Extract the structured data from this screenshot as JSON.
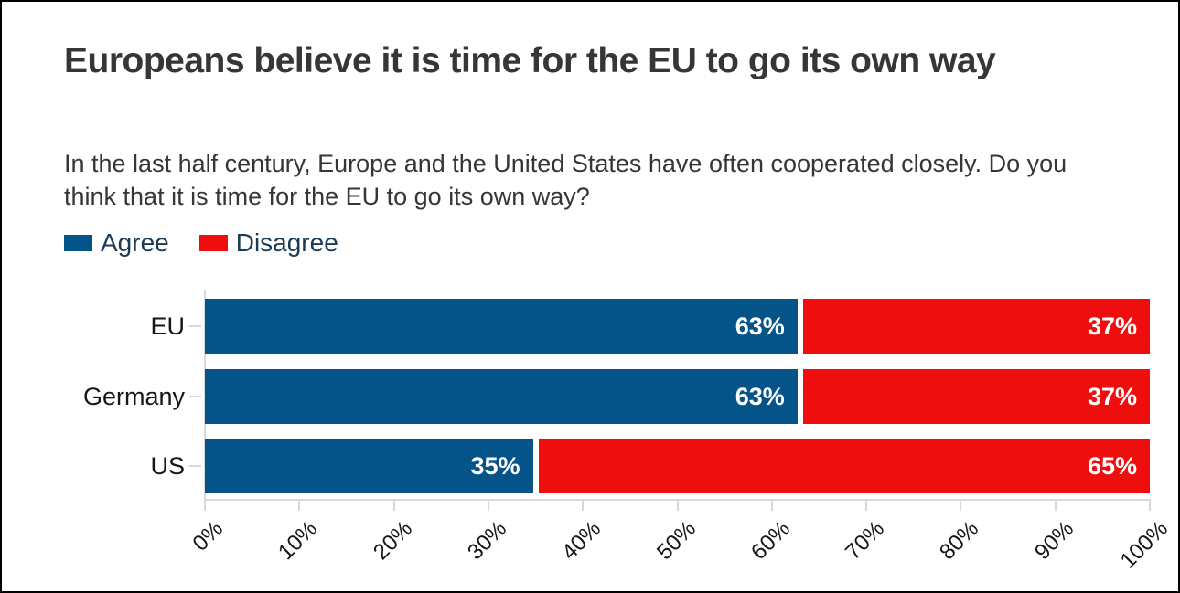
{
  "chart_data": {
    "type": "bar",
    "orientation": "horizontal",
    "stacked": true,
    "title": "Europeans believe it is time for the EU to go its own way",
    "subtitle": "In the last half century, Europe and the United States have often cooperated closely. Do you think that it is time for the EU to go its own way?",
    "categories": [
      "EU",
      "Germany",
      "US"
    ],
    "series": [
      {
        "name": "Agree",
        "color": "#04548a",
        "values": [
          63,
          63,
          35
        ],
        "labels": [
          "63%",
          "63%",
          "35%"
        ]
      },
      {
        "name": "Disagree",
        "color": "#ee0e0e",
        "values": [
          37,
          37,
          65
        ],
        "labels": [
          "37%",
          "37%",
          "65%"
        ]
      }
    ],
    "x_ticks": [
      "0%",
      "10%",
      "20%",
      "30%",
      "40%",
      "50%",
      "60%",
      "70%",
      "80%",
      "90%",
      "100%"
    ],
    "xlim": [
      0,
      100
    ],
    "grid": false,
    "legend_position": "top-left",
    "bar_label_color": "#ffffff",
    "axis_color": "#d9d9d9",
    "text_color": "#161616",
    "legend_text_color": "#1b3a54",
    "title_color": "#363636"
  }
}
